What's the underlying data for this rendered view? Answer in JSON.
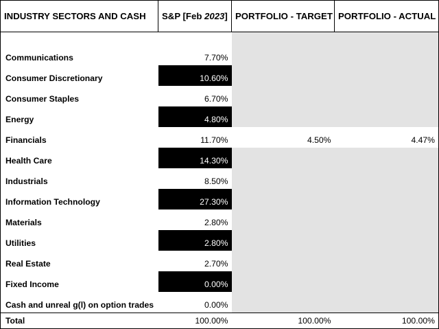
{
  "headers": {
    "col0": "INDUSTRY SECTORS AND CASH",
    "col1_prefix": "S&P [Feb ",
    "col1_year": "2023",
    "col1_suffix": "]",
    "col2": "PORTFOLIO - TARGET",
    "col3": "PORTFOLIO - ACTUAL"
  },
  "rows": [
    {
      "label": "Communications",
      "sp": "7.70%",
      "target": "",
      "actual": ""
    },
    {
      "label": "Consumer Discretionary",
      "sp": "10.60%",
      "target": "",
      "actual": ""
    },
    {
      "label": "Consumer Staples",
      "sp": "6.70%",
      "target": "",
      "actual": ""
    },
    {
      "label": "Energy",
      "sp": "4.80%",
      "target": "",
      "actual": ""
    },
    {
      "label": "Financials",
      "sp": "11.70%",
      "target": "4.50%",
      "actual": "4.47%"
    },
    {
      "label": "Health Care",
      "sp": "14.30%",
      "target": "",
      "actual": ""
    },
    {
      "label": "Industrials",
      "sp": "8.50%",
      "target": "",
      "actual": ""
    },
    {
      "label": "Information Technology",
      "sp": "27.30%",
      "target": "",
      "actual": ""
    },
    {
      "label": "Materials",
      "sp": "2.80%",
      "target": "",
      "actual": ""
    },
    {
      "label": "Utilities",
      "sp": "2.80%",
      "target": "",
      "actual": ""
    },
    {
      "label": "Real Estate",
      "sp": "2.70%",
      "target": "",
      "actual": ""
    },
    {
      "label": "Fixed Income",
      "sp": "0.00%",
      "target": "",
      "actual": ""
    },
    {
      "label": "Cash and unreal g(l) on option trades",
      "sp": "0.00%",
      "target": "",
      "actual": ""
    }
  ],
  "total": {
    "label": "Total",
    "sp": "100.00%",
    "target": "100.00%",
    "actual": "100.00%"
  },
  "colors": {
    "highlight": "#000000",
    "grey_fill": "#e3e3e3",
    "text": "#000000"
  }
}
